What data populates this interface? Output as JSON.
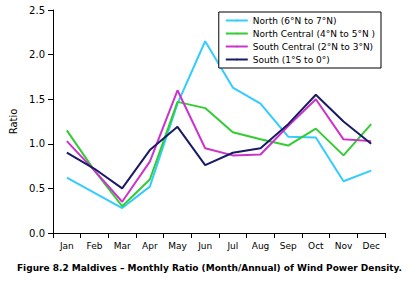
{
  "chart_data": {
    "type": "line",
    "title": "Figure 8.2 Maldives – Monthly Ratio (Month/Annual) of Wind Power Density.",
    "y_label": "Ratio",
    "categories": [
      "Jan",
      "Feb",
      "Mar",
      "Apr",
      "May",
      "Jun",
      "Jul",
      "Aug",
      "Sep",
      "Oct",
      "Nov",
      "Dec"
    ],
    "series": [
      {
        "name": "North (6°N to 7°N)",
        "color": "#33ccff",
        "values": [
          0.62,
          0.45,
          0.28,
          0.52,
          1.45,
          2.15,
          1.63,
          1.45,
          1.08,
          1.07,
          0.58,
          0.7
        ]
      },
      {
        "name": "North Central (4°N to 5°N )",
        "color": "#33cc33",
        "values": [
          1.15,
          0.7,
          0.3,
          0.6,
          1.47,
          1.4,
          1.13,
          1.05,
          0.98,
          1.17,
          0.87,
          1.22
        ]
      },
      {
        "name": "South Central (2°N to 3°N)",
        "color": "#cc33cc",
        "values": [
          1.03,
          0.7,
          0.35,
          0.8,
          1.6,
          0.95,
          0.87,
          0.88,
          1.2,
          1.5,
          1.05,
          1.03
        ]
      },
      {
        "name": "South (1°S to 0°)",
        "color": "#1a1a66",
        "values": [
          0.9,
          0.72,
          0.5,
          0.93,
          1.19,
          0.76,
          0.9,
          0.95,
          1.22,
          1.55,
          1.25,
          1.0
        ]
      }
    ],
    "ylim": [
      0,
      2.5
    ],
    "yticks": [
      {
        "value": 0,
        "label": "0.0"
      },
      0.5,
      {
        "value": 1,
        "label": "1.0"
      },
      1.5,
      {
        "value": 2,
        "label": "2.0"
      },
      2.5
    ],
    "grid": false,
    "legend": "upper right",
    "marker": "none",
    "line_style": "solid"
  }
}
